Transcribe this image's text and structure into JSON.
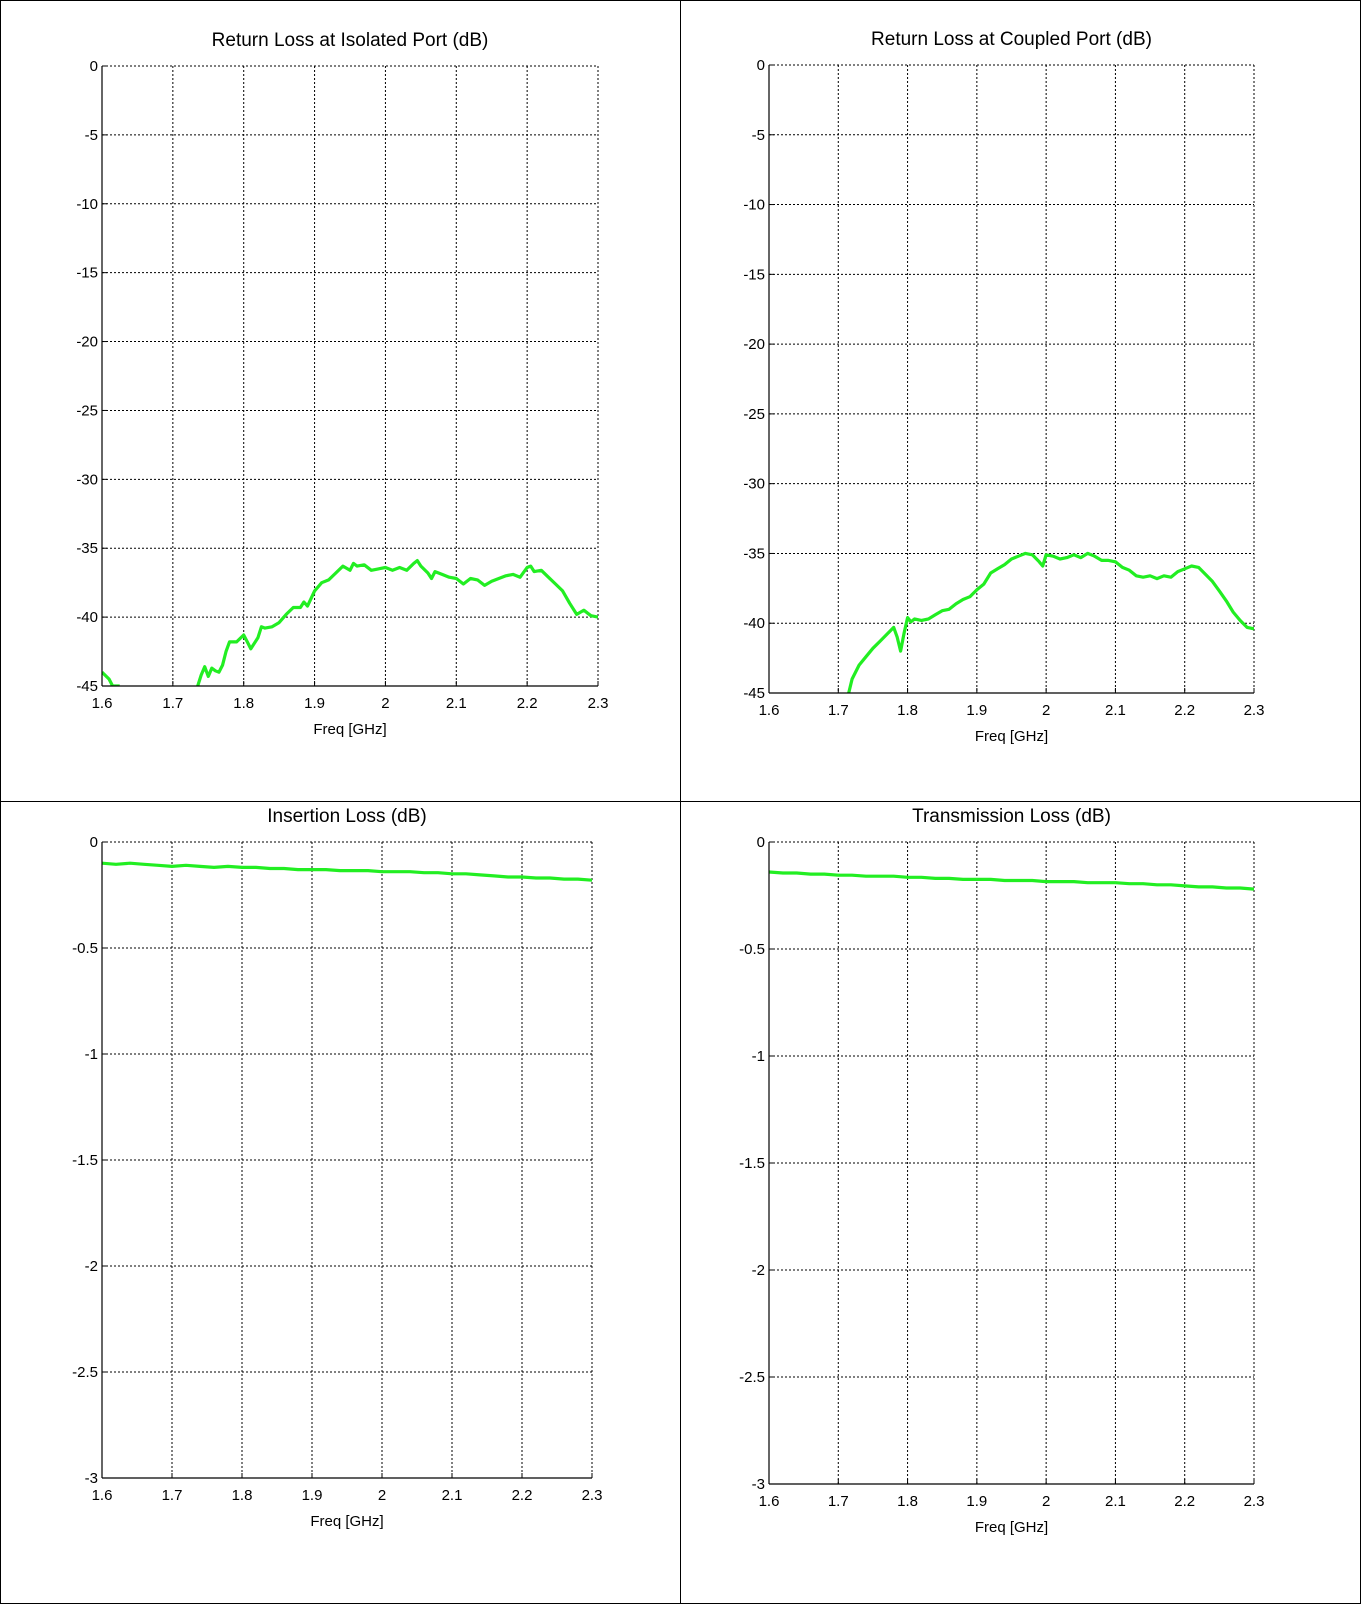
{
  "colors": {
    "series": "#22ee22",
    "grid": "#000000"
  },
  "chart_data": [
    {
      "type": "line",
      "title": "Return Loss at Isolated Port (dB)",
      "xlabel": "Freq [GHz]",
      "ylabel": "",
      "xlim": [
        1.6,
        2.3
      ],
      "ylim": [
        -45,
        0
      ],
      "xticks": [
        1.6,
        1.7,
        1.8,
        1.9,
        2,
        2.1,
        2.2,
        2.3
      ],
      "xtick_labels": [
        "1.6",
        "1.7",
        "1.8",
        "1.9",
        "2",
        "2.1",
        "2.2",
        "2.3"
      ],
      "yticks": [
        0,
        -5,
        -10,
        -15,
        -20,
        -25,
        -30,
        -35,
        -40,
        -45
      ],
      "ytick_labels": [
        "0",
        "-5",
        "-10",
        "-15",
        "-20",
        "-25",
        "-30",
        "-35",
        "-40",
        "-45"
      ],
      "grid": true,
      "series": [
        {
          "x": [
            1.6,
            1.61,
            1.615,
            1.62,
            1.625
          ],
          "y": [
            -44,
            -44.5,
            -45,
            -45,
            -45
          ]
        },
        {
          "x": [
            1.735,
            1.74,
            1.745,
            1.75,
            1.755,
            1.76,
            1.765,
            1.77,
            1.775,
            1.78,
            1.79,
            1.8,
            1.805,
            1.81,
            1.82,
            1.825,
            1.83,
            1.84,
            1.85,
            1.86,
            1.87,
            1.88,
            1.885,
            1.89,
            1.9,
            1.91,
            1.92,
            1.93,
            1.94,
            1.95,
            1.955,
            1.96,
            1.97,
            1.98,
            1.99,
            2.0,
            2.01,
            2.02,
            2.03,
            2.04,
            2.045,
            2.05,
            2.06,
            2.065,
            2.07,
            2.08,
            2.09,
            2.1,
            2.11,
            2.12,
            2.13,
            2.14,
            2.15,
            2.16,
            2.17,
            2.18,
            2.19,
            2.2,
            2.205,
            2.21,
            2.22,
            2.23,
            2.24,
            2.25,
            2.26,
            2.27,
            2.28,
            2.29,
            2.3
          ],
          "y": [
            -45,
            -44.2,
            -43.6,
            -44.3,
            -43.7,
            -43.9,
            -44,
            -43.5,
            -42.5,
            -41.8,
            -41.8,
            -41.3,
            -41.8,
            -42.3,
            -41.5,
            -40.7,
            -40.8,
            -40.7,
            -40.4,
            -39.8,
            -39.3,
            -39.3,
            -38.9,
            -39.2,
            -38.1,
            -37.5,
            -37.3,
            -36.8,
            -36.3,
            -36.6,
            -36.1,
            -36.3,
            -36.2,
            -36.6,
            -36.5,
            -36.4,
            -36.6,
            -36.4,
            -36.6,
            -36.1,
            -35.9,
            -36.3,
            -36.8,
            -37.2,
            -36.7,
            -36.9,
            -37.1,
            -37.2,
            -37.6,
            -37.2,
            -37.3,
            -37.7,
            -37.4,
            -37.2,
            -37.0,
            -36.9,
            -37.1,
            -36.4,
            -36.3,
            -36.7,
            -36.6,
            -37.1,
            -37.6,
            -38.1,
            -39.0,
            -39.8,
            -39.5,
            -39.9,
            -40.0
          ]
        }
      ]
    },
    {
      "type": "line",
      "title": "Return Loss at Coupled Port (dB)",
      "xlabel": "Freq [GHz]",
      "ylabel": "",
      "xlim": [
        1.6,
        2.3
      ],
      "ylim": [
        -45,
        0
      ],
      "xticks": [
        1.6,
        1.7,
        1.8,
        1.9,
        2,
        2.1,
        2.2,
        2.3
      ],
      "xtick_labels": [
        "1.6",
        "1.7",
        "1.8",
        "1.9",
        "2",
        "2.1",
        "2.2",
        "2.3"
      ],
      "yticks": [
        0,
        -5,
        -10,
        -15,
        -20,
        -25,
        -30,
        -35,
        -40,
        -45
      ],
      "ytick_labels": [
        "0",
        "-5",
        "-10",
        "-15",
        "-20",
        "-25",
        "-30",
        "-35",
        "-40",
        "-45"
      ],
      "grid": true,
      "series": [
        {
          "x": [
            1.715,
            1.72,
            1.73,
            1.74,
            1.75,
            1.76,
            1.77,
            1.78,
            1.785,
            1.79,
            1.795,
            1.8,
            1.805,
            1.81,
            1.82,
            1.83,
            1.84,
            1.85,
            1.86,
            1.87,
            1.88,
            1.89,
            1.9,
            1.91,
            1.92,
            1.93,
            1.94,
            1.95,
            1.96,
            1.97,
            1.98,
            1.99,
            1.995,
            2.0,
            2.01,
            2.02,
            2.03,
            2.04,
            2.05,
            2.06,
            2.07,
            2.08,
            2.09,
            2.1,
            2.11,
            2.12,
            2.13,
            2.14,
            2.15,
            2.16,
            2.17,
            2.18,
            2.19,
            2.2,
            2.21,
            2.22,
            2.23,
            2.24,
            2.25,
            2.26,
            2.27,
            2.28,
            2.29,
            2.3
          ],
          "y": [
            -45,
            -44,
            -43,
            -42.4,
            -41.8,
            -41.3,
            -40.8,
            -40.3,
            -41,
            -42,
            -40.7,
            -39.6,
            -39.9,
            -39.7,
            -39.8,
            -39.7,
            -39.4,
            -39.1,
            -39.0,
            -38.6,
            -38.3,
            -38.1,
            -37.6,
            -37.2,
            -36.4,
            -36.1,
            -35.8,
            -35.4,
            -35.2,
            -35.0,
            -35.1,
            -35.6,
            -35.9,
            -35.1,
            -35.2,
            -35.4,
            -35.3,
            -35.1,
            -35.3,
            -35.0,
            -35.2,
            -35.5,
            -35.5,
            -35.6,
            -36.0,
            -36.2,
            -36.6,
            -36.7,
            -36.6,
            -36.8,
            -36.6,
            -36.7,
            -36.3,
            -36.1,
            -35.9,
            -36.0,
            -36.5,
            -37.0,
            -37.7,
            -38.4,
            -39.2,
            -39.8,
            -40.3,
            -40.4
          ]
        }
      ]
    },
    {
      "type": "line",
      "title": "Insertion Loss (dB)",
      "xlabel": "Freq [GHz]",
      "ylabel": "",
      "xlim": [
        1.6,
        2.3
      ],
      "ylim": [
        -3,
        0
      ],
      "xticks": [
        1.6,
        1.7,
        1.8,
        1.9,
        2,
        2.1,
        2.2,
        2.3
      ],
      "xtick_labels": [
        "1.6",
        "1.7",
        "1.8",
        "1.9",
        "2",
        "2.1",
        "2.2",
        "2.3"
      ],
      "yticks": [
        0,
        -0.5,
        -1,
        -1.5,
        -2,
        -2.5,
        -3
      ],
      "ytick_labels": [
        "0",
        "-0.5",
        "-1",
        "-1.5",
        "-2",
        "-2.5",
        "-3"
      ],
      "grid": true,
      "series": [
        {
          "x": [
            1.6,
            1.62,
            1.64,
            1.66,
            1.68,
            1.7,
            1.72,
            1.74,
            1.76,
            1.78,
            1.8,
            1.82,
            1.84,
            1.86,
            1.88,
            1.9,
            1.92,
            1.94,
            1.96,
            1.98,
            2.0,
            2.02,
            2.04,
            2.06,
            2.08,
            2.1,
            2.12,
            2.14,
            2.16,
            2.18,
            2.2,
            2.22,
            2.24,
            2.26,
            2.28,
            2.3
          ],
          "y": [
            -0.1,
            -0.105,
            -0.1,
            -0.105,
            -0.11,
            -0.115,
            -0.11,
            -0.115,
            -0.12,
            -0.115,
            -0.12,
            -0.12,
            -0.125,
            -0.125,
            -0.13,
            -0.13,
            -0.13,
            -0.135,
            -0.135,
            -0.135,
            -0.14,
            -0.14,
            -0.14,
            -0.145,
            -0.145,
            -0.15,
            -0.15,
            -0.155,
            -0.16,
            -0.165,
            -0.165,
            -0.17,
            -0.17,
            -0.175,
            -0.175,
            -0.18
          ]
        }
      ]
    },
    {
      "type": "line",
      "title": "Transmission Loss (dB)",
      "xlabel": "Freq [GHz]",
      "ylabel": "",
      "xlim": [
        1.6,
        2.3
      ],
      "ylim": [
        -3,
        0
      ],
      "xticks": [
        1.6,
        1.7,
        1.8,
        1.9,
        2,
        2.1,
        2.2,
        2.3
      ],
      "xtick_labels": [
        "1.6",
        "1.7",
        "1.8",
        "1.9",
        "2",
        "2.1",
        "2.2",
        "2.3"
      ],
      "yticks": [
        0,
        -0.5,
        -1,
        -1.5,
        -2,
        -2.5,
        -3
      ],
      "ytick_labels": [
        "0",
        "-0.5",
        "-1",
        "-1.5",
        "-2",
        "-2.5",
        "-3"
      ],
      "grid": true,
      "series": [
        {
          "x": [
            1.6,
            1.62,
            1.64,
            1.66,
            1.68,
            1.7,
            1.72,
            1.74,
            1.76,
            1.78,
            1.8,
            1.82,
            1.84,
            1.86,
            1.88,
            1.9,
            1.92,
            1.94,
            1.96,
            1.98,
            2.0,
            2.02,
            2.04,
            2.06,
            2.08,
            2.1,
            2.12,
            2.14,
            2.16,
            2.18,
            2.2,
            2.22,
            2.24,
            2.26,
            2.28,
            2.3
          ],
          "y": [
            -0.14,
            -0.145,
            -0.145,
            -0.15,
            -0.15,
            -0.155,
            -0.155,
            -0.16,
            -0.16,
            -0.16,
            -0.165,
            -0.165,
            -0.17,
            -0.17,
            -0.175,
            -0.175,
            -0.175,
            -0.18,
            -0.18,
            -0.18,
            -0.185,
            -0.185,
            -0.185,
            -0.19,
            -0.19,
            -0.19,
            -0.195,
            -0.195,
            -0.2,
            -0.2,
            -0.205,
            -0.21,
            -0.21,
            -0.215,
            -0.215,
            -0.22
          ]
        }
      ]
    }
  ]
}
